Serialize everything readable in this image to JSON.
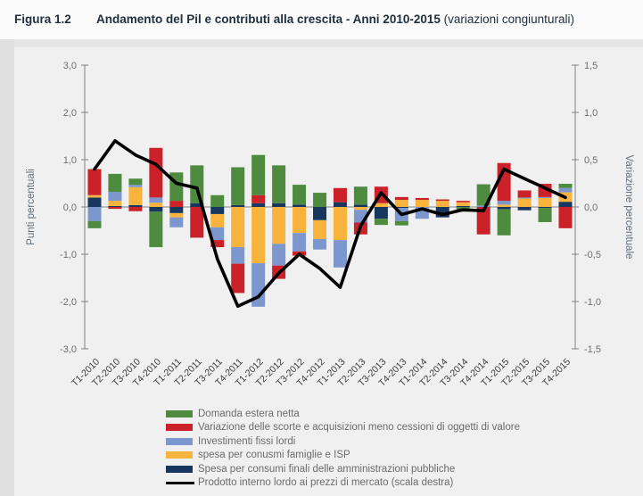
{
  "figure": {
    "label": "Figura 1.2",
    "title": "Andamento del Pil e contributi alla crescita - Anni 2010-2015",
    "title_suffix": " (variazioni congiunturali)"
  },
  "colors": {
    "net_exports_green": "#4e8b3e",
    "inventories_red": "#cb2128",
    "investments_blue": "#7b97cd",
    "households_yellow": "#f8b33c",
    "government_navy": "#17375e",
    "gdp_line_black": "#000000",
    "zero_line_gray": "#999999",
    "axis_gray": "#808080",
    "panel_bg": "#f0f0f0"
  },
  "chart_data": {
    "type": "bar",
    "subtype": "stacked-bars-with-line-overlay",
    "grid": "zero-line-only",
    "legend_position": "bottom",
    "categories": [
      "T1-2010",
      "T2-2010",
      "T3-2010",
      "T4-2010",
      "T1-2011",
      "T2-2011",
      "T3-2011",
      "T4-2011",
      "T1-2012",
      "T2-2012",
      "T3-2012",
      "T4-2012",
      "T1-2013",
      "T2-2013",
      "T3-2013",
      "T4-2013",
      "T1-2014",
      "T2-2014",
      "T3-2014",
      "T4-2014",
      "T1-2015",
      "T2-2015",
      "T3-2015",
      "T4-2015"
    ],
    "left_axis": {
      "label": "Punti percentuali",
      "min": -3.0,
      "max": 3.0,
      "step": 1.0,
      "tick_labels": [
        "3,0",
        "2,0",
        "1,0",
        "0,0",
        "-1,0",
        "-2,0",
        "-3,0"
      ]
    },
    "right_axis": {
      "label": "Variazione percentuale",
      "min": -1.5,
      "max": 1.5,
      "step": 0.5,
      "tick_labels": [
        "1,5",
        "1,0",
        "0,5",
        "0,0",
        "-0,5",
        "-1,0",
        "-1,5"
      ]
    },
    "series": [
      {
        "name": "Spesa per consumi finali delle amministrazioni pubbliche",
        "color": "#17375e",
        "values": [
          0.2,
          0.02,
          0.04,
          -0.1,
          -0.13,
          0.08,
          -0.15,
          0.04,
          0.08,
          0.08,
          0.05,
          -0.28,
          0.1,
          0.05,
          -0.25,
          -0.02,
          0.0,
          -0.22,
          0.02,
          0.0,
          -0.05,
          -0.07,
          -0.02,
          0.11
        ]
      },
      {
        "name": "spesa per conusmi famiglie e ISP",
        "color": "#f8b33c",
        "values": [
          0.05,
          0.11,
          0.38,
          0.09,
          -0.09,
          0.0,
          -0.28,
          -0.85,
          -1.19,
          -0.78,
          -0.55,
          -0.4,
          -0.7,
          -0.06,
          0.08,
          0.15,
          0.15,
          0.13,
          0.08,
          0.0,
          0.05,
          0.18,
          0.19,
          0.2
        ]
      },
      {
        "name": "Investimenti fissi lordi",
        "color": "#7b97cd",
        "values": [
          -0.3,
          0.19,
          0.05,
          0.11,
          -0.21,
          0.0,
          -0.27,
          -0.35,
          -0.92,
          -0.46,
          -0.39,
          -0.22,
          -0.58,
          -0.27,
          0.0,
          -0.28,
          -0.25,
          0.0,
          0.0,
          0.03,
          0.08,
          0.02,
          0.02,
          0.09
        ]
      },
      {
        "name": "Variazione delle scorte e acquisizioni meno cessioni di oggetti di valore",
        "color": "#cb2128",
        "values": [
          0.55,
          -0.04,
          -0.09,
          1.05,
          0.13,
          -0.65,
          -0.15,
          -0.62,
          0.17,
          -0.28,
          -0.09,
          0.0,
          0.3,
          -0.25,
          0.35,
          0.06,
          0.04,
          0.03,
          0.03,
          -0.58,
          0.8,
          0.15,
          0.28,
          -0.45
        ]
      },
      {
        "name": "Domanda estera netta",
        "color": "#4e8b3e",
        "values": [
          -0.15,
          0.38,
          0.13,
          -0.75,
          0.6,
          0.8,
          0.25,
          0.8,
          0.85,
          0.8,
          0.42,
          0.3,
          0.0,
          0.38,
          -0.13,
          -0.09,
          0.0,
          0.0,
          -0.1,
          0.45,
          -0.55,
          0.0,
          -0.3,
          0.09
        ]
      }
    ],
    "line_series": {
      "name": "Prodotto interno lordo ai prezzi di mercato (scala destra)",
      "color": "#000000",
      "axis": "right",
      "values": [
        0.4,
        0.7,
        0.55,
        0.45,
        0.25,
        0.2,
        -0.55,
        -1.05,
        -0.95,
        -0.7,
        -0.5,
        -0.65,
        -0.85,
        -0.2,
        0.15,
        -0.08,
        -0.02,
        -0.08,
        -0.03,
        -0.04,
        0.4,
        0.3,
        0.2,
        0.1
      ]
    },
    "legend": [
      {
        "label": "Domanda estera netta",
        "color": "#4e8b3e",
        "type": "bar"
      },
      {
        "label": "Variazione delle scorte e acquisizioni meno cessioni di oggetti di valore",
        "color": "#cb2128",
        "type": "bar"
      },
      {
        "label": "Investimenti fissi lordi",
        "color": "#7b97cd",
        "type": "bar"
      },
      {
        "label": "spesa per conusmi famiglie e ISP",
        "color": "#f8b33c",
        "type": "bar"
      },
      {
        "label": "Spesa per consumi finali delle amministrazioni pubbliche",
        "color": "#17375e",
        "type": "bar"
      },
      {
        "label": "Prodotto interno lordo ai prezzi di mercato (scala destra)",
        "color": "#000000",
        "type": "line"
      }
    ]
  }
}
